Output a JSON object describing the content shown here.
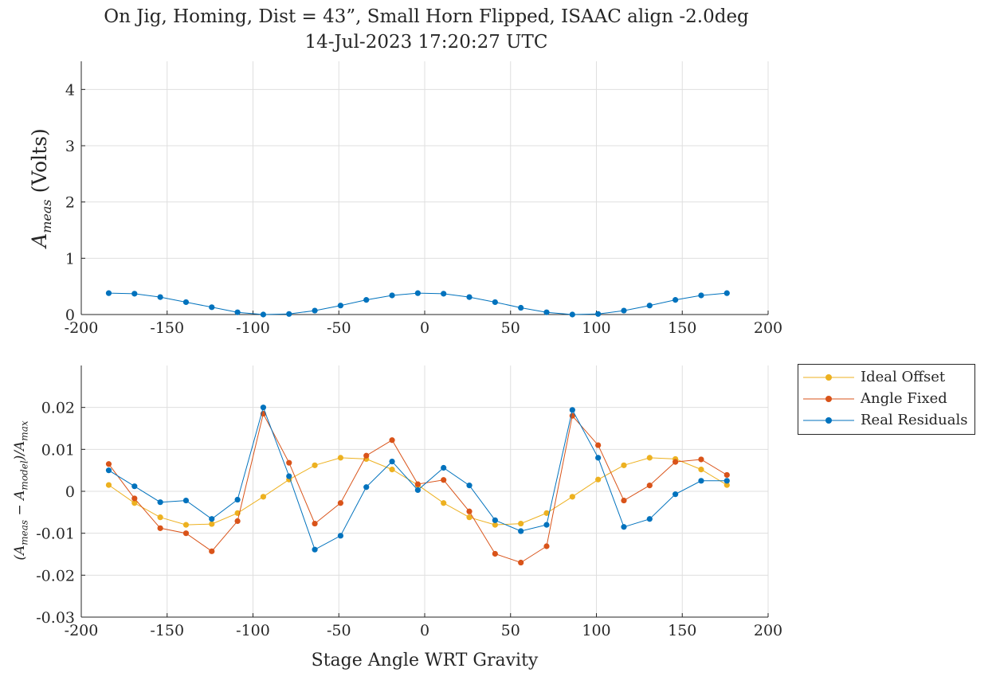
{
  "titles": {
    "line1": "On Jig, Homing, Dist = 43”, Small Horn Flipped, ISAAC align -2.0deg",
    "line2": "14-Jul-2023 17:20:27 UTC"
  },
  "colors": {
    "ideal": "#EDB120",
    "angle": "#D95319",
    "real": "#0072BD",
    "grid": "#dfdfdf",
    "axis": "#262626"
  },
  "chart_data": [
    {
      "type": "line",
      "ylabel_main": "A",
      "ylabel_sub": "meas",
      "ylabel_units": "(Volts)",
      "xlim": [
        -200,
        200
      ],
      "ylim": [
        0,
        4.5
      ],
      "xticks": [
        -200,
        -150,
        -100,
        -50,
        0,
        50,
        100,
        150,
        200
      ],
      "yticks": [
        0,
        1,
        2,
        3,
        4
      ],
      "grid": true,
      "series": [
        {
          "x": [
            -184,
            -169,
            -154,
            -139,
            -124,
            -109,
            -94,
            -79,
            -64,
            -49,
            -34,
            -19,
            -4,
            11,
            26,
            41,
            56,
            71,
            86,
            101,
            116,
            131,
            146,
            161,
            176
          ],
          "values": [
            0.38,
            0.37,
            0.31,
            0.22,
            0.13,
            0.04,
            0.0,
            0.01,
            0.07,
            0.16,
            0.26,
            0.34,
            0.38,
            0.37,
            0.31,
            0.22,
            0.12,
            0.04,
            0.0,
            0.01,
            0.07,
            0.16,
            0.26,
            0.34,
            0.38
          ]
        }
      ]
    },
    {
      "type": "line",
      "ylabel": "(A_meas - A_model)/A_max",
      "xlabel": "Stage Angle WRT Gravity",
      "xlim": [
        -200,
        200
      ],
      "ylim": [
        -0.03,
        0.03
      ],
      "xticks": [
        -200,
        -150,
        -100,
        -50,
        0,
        50,
        100,
        150,
        200
      ],
      "yticks": [
        -0.03,
        -0.02,
        -0.01,
        0,
        0.01,
        0.02
      ],
      "ytick_labels": [
        "-0.03",
        "-0.02",
        "-0.01",
        "0",
        "0.01",
        "0.02"
      ],
      "grid": true,
      "legend_position": "outside-right",
      "x": [
        -184,
        -169,
        -154,
        -139,
        -124,
        -109,
        -94,
        -79,
        -64,
        -49,
        -34,
        -19,
        -4,
        11,
        26,
        41,
        56,
        71,
        86,
        101,
        116,
        131,
        146,
        161,
        176
      ],
      "series": [
        {
          "name": "Ideal Offset",
          "values": [
            0.0015,
            -0.0028,
            -0.0062,
            -0.008,
            -0.0078,
            -0.0052,
            -0.0013,
            0.0028,
            0.0062,
            0.008,
            0.0077,
            0.0052,
            0.0015,
            -0.0028,
            -0.0062,
            -0.008,
            -0.0077,
            -0.0052,
            -0.0013,
            0.0028,
            0.0062,
            0.008,
            0.0077,
            0.0052,
            0.0015
          ]
        },
        {
          "name": "Angle Fixed",
          "values": [
            0.0065,
            -0.0017,
            -0.0088,
            -0.01,
            -0.0143,
            -0.0071,
            0.0185,
            0.0068,
            -0.0077,
            -0.0028,
            0.0085,
            0.0122,
            0.0017,
            0.0027,
            -0.0048,
            -0.0149,
            -0.017,
            -0.0131,
            0.018,
            0.011,
            -0.0022,
            0.0014,
            0.007,
            0.0076,
            0.0039
          ]
        },
        {
          "name": "Real Residuals",
          "values": [
            0.005,
            0.0012,
            -0.0026,
            -0.0022,
            -0.0066,
            -0.002,
            0.02,
            0.0036,
            -0.0139,
            -0.0106,
            0.001,
            0.0071,
            0.0003,
            0.0056,
            0.0014,
            -0.0069,
            -0.0095,
            -0.008,
            0.0194,
            0.008,
            -0.0085,
            -0.0066,
            -0.0007,
            0.0025,
            0.0025
          ]
        }
      ]
    }
  ]
}
